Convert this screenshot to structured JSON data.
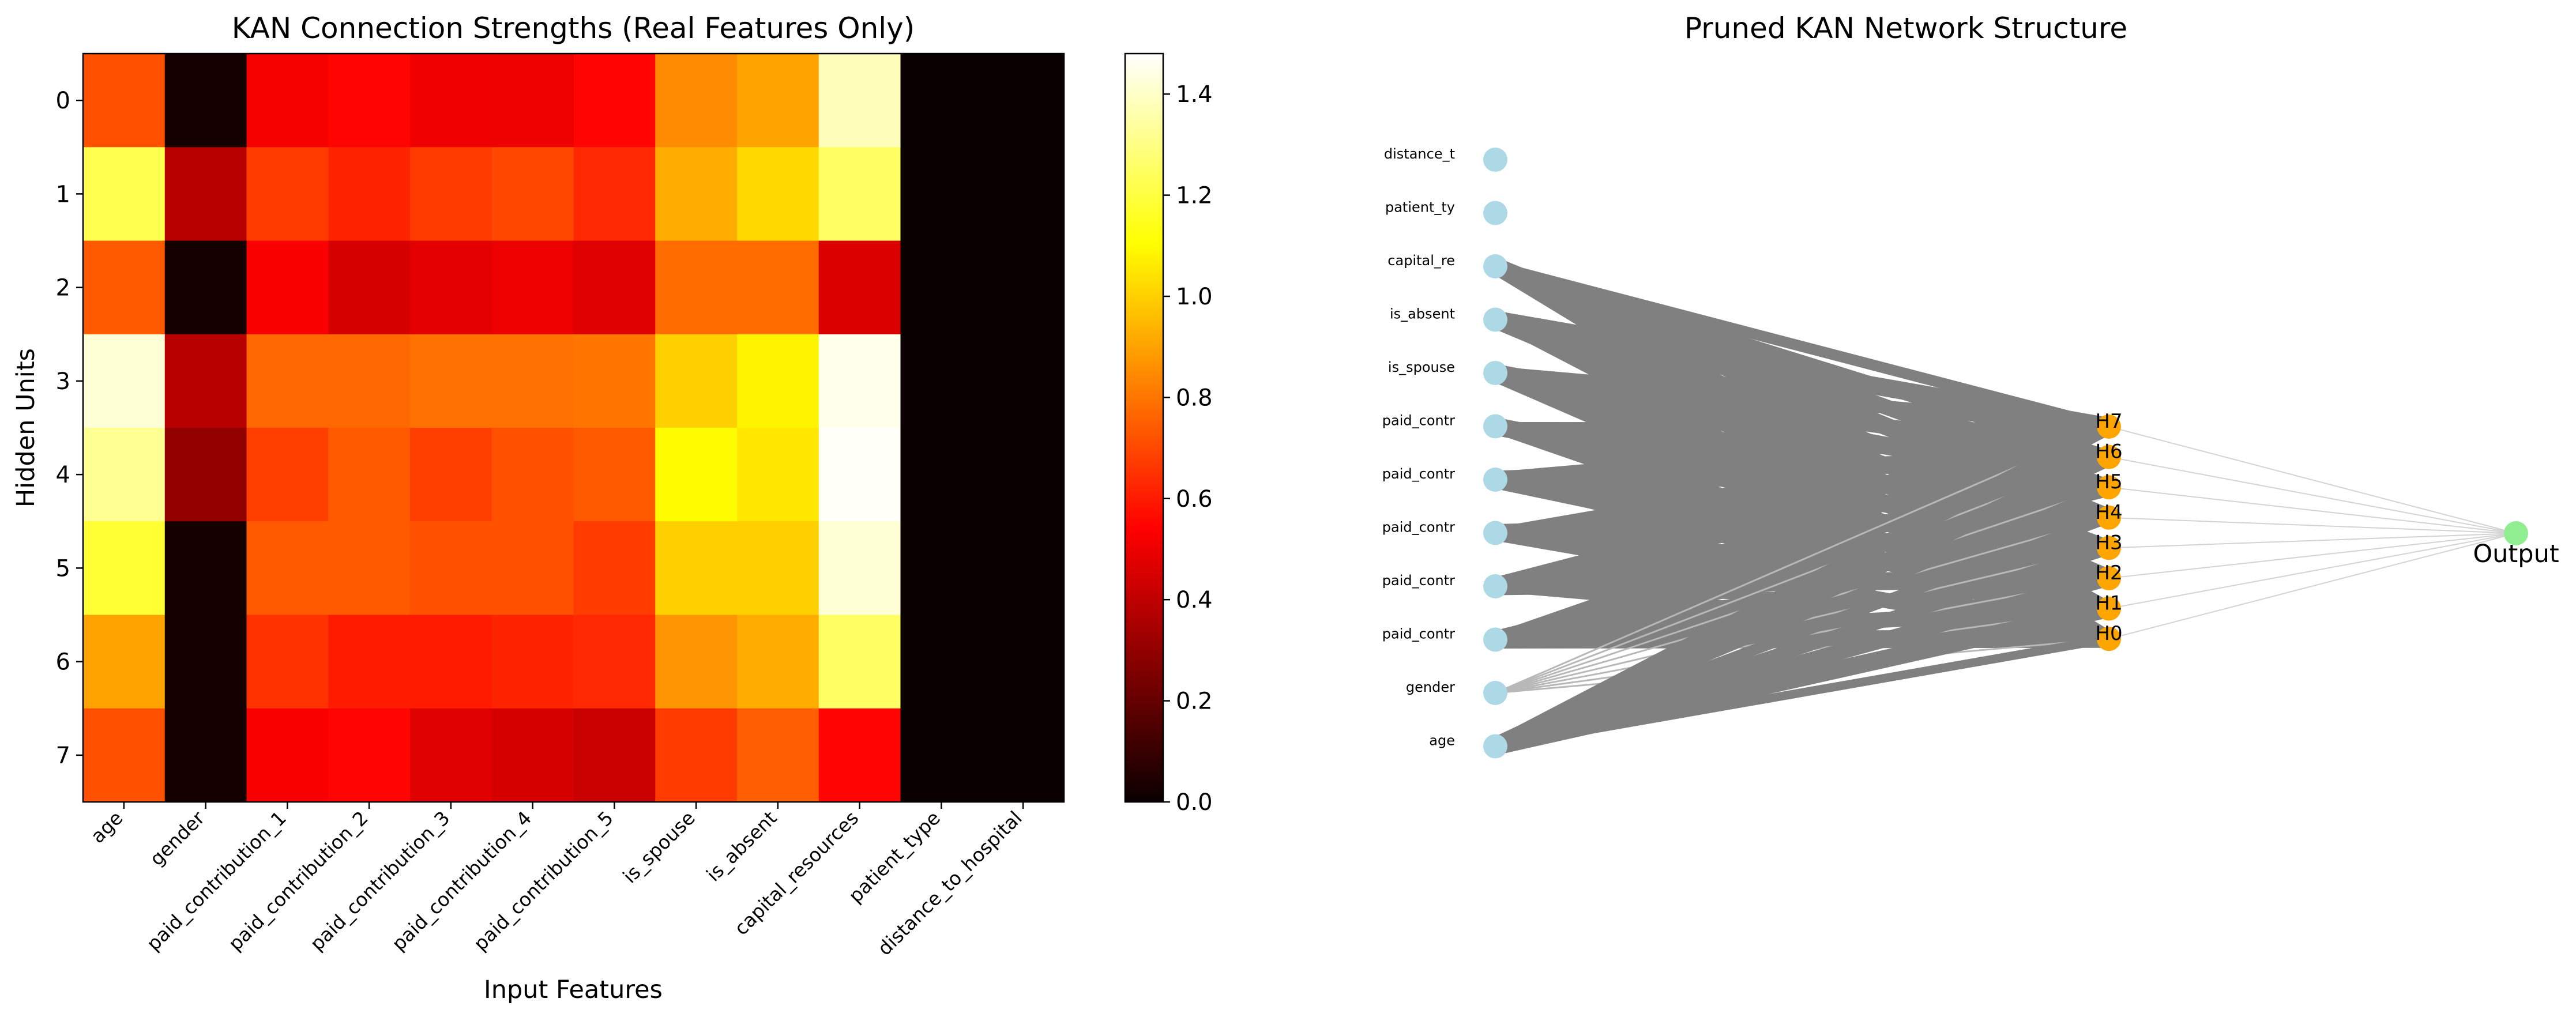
{
  "chart_data": [
    {
      "type": "heatmap",
      "title": "KAN Connection Strengths (Real Features Only)",
      "xlabel": "Input Features",
      "ylabel": "Hidden Units",
      "x_categories": [
        "age",
        "gender",
        "paid_contribution_1",
        "paid_contribution_2",
        "paid_contribution_3",
        "paid_contribution_4",
        "paid_contribution_5",
        "is_spouse",
        "is_absent",
        "capital_resources",
        "patient_type",
        "distance_to_hospital"
      ],
      "y_categories": [
        "0",
        "1",
        "2",
        "3",
        "4",
        "5",
        "6",
        "7"
      ],
      "values": [
        [
          0.72,
          0.02,
          0.52,
          0.55,
          0.51,
          0.5,
          0.55,
          0.85,
          0.9,
          1.38,
          0.0,
          0.0
        ],
        [
          1.22,
          0.38,
          0.67,
          0.62,
          0.67,
          0.7,
          0.63,
          0.92,
          1.02,
          1.25,
          0.0,
          0.0
        ],
        [
          0.74,
          0.02,
          0.53,
          0.45,
          0.48,
          0.5,
          0.47,
          0.78,
          0.78,
          0.46,
          0.0,
          0.0
        ],
        [
          1.42,
          0.38,
          0.77,
          0.77,
          0.79,
          0.79,
          0.8,
          1.0,
          1.08,
          1.45,
          0.0,
          0.0
        ],
        [
          1.32,
          0.3,
          0.68,
          0.74,
          0.68,
          0.72,
          0.74,
          1.1,
          1.05,
          1.47,
          0.0,
          0.0
        ],
        [
          1.18,
          0.02,
          0.74,
          0.74,
          0.72,
          0.72,
          0.67,
          1.0,
          1.0,
          1.42,
          0.0,
          0.0
        ],
        [
          0.9,
          0.02,
          0.65,
          0.6,
          0.6,
          0.62,
          0.63,
          0.87,
          0.92,
          1.25,
          0.0,
          0.0
        ],
        [
          0.72,
          0.02,
          0.53,
          0.55,
          0.47,
          0.45,
          0.42,
          0.67,
          0.75,
          0.55,
          0.0,
          0.0
        ]
      ],
      "colormap": "hot",
      "colorbar": {
        "range": [
          0.0,
          1.48
        ],
        "ticks": [
          "0.0",
          "0.2",
          "0.4",
          "0.6",
          "0.8",
          "1.0",
          "1.2",
          "1.4"
        ]
      }
    },
    {
      "type": "network",
      "title": "Pruned KAN Network Structure",
      "input_nodes": [
        "distance_t",
        "patient_ty",
        "capital_re",
        "is_absent",
        "is_spouse",
        "paid_contr",
        "paid_contr",
        "paid_contr",
        "paid_contr",
        "paid_contr",
        "gender",
        "age"
      ],
      "hidden_nodes": [
        "H7",
        "H6",
        "H5",
        "H4",
        "H3",
        "H2",
        "H1",
        "H0"
      ],
      "output_node": "Output",
      "connected_inputs": [
        2,
        3,
        4,
        5,
        6,
        7,
        8,
        9,
        10,
        11
      ],
      "colors": {
        "input_node": "#add8e6",
        "hidden_node": "#ffa500",
        "output_node": "#90ee90",
        "edge": "#808080",
        "edge_light": "#b8b8b8",
        "output_edge": "#d3d3d3"
      }
    }
  ]
}
